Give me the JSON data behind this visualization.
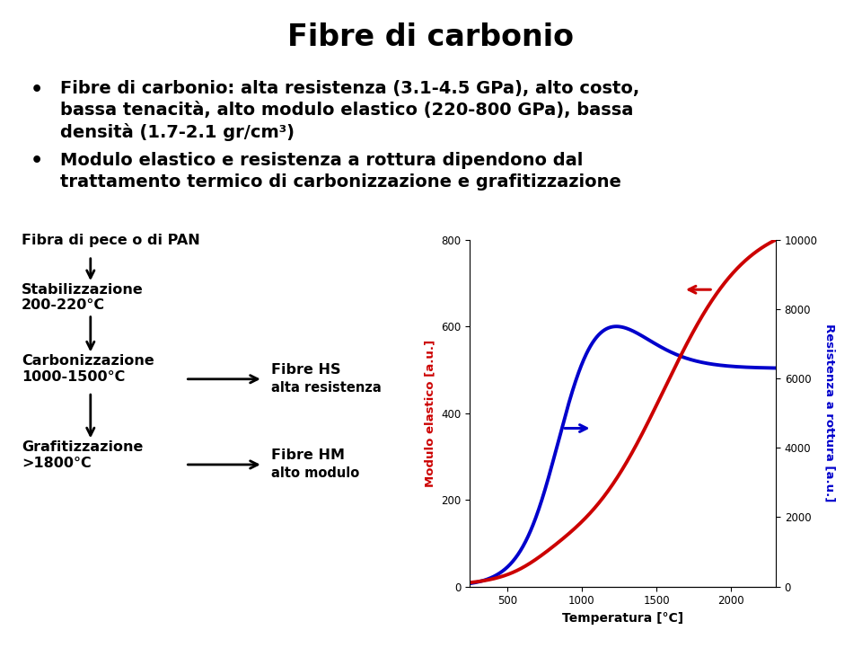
{
  "title": "Fibre di carbonio",
  "bullet1_line1": "Fibre di carbonio: alta resistenza (3.1-4.5 GPa), alto costo,",
  "bullet1_line2": "bassa tenacità, alto modulo elastico (220-800 GPa), bassa",
  "bullet1_line3": "densità (1.7-2.1 gr/cm³)",
  "bullet2_line1": "Modulo elastico e resistenza a rottura dipendono dal",
  "bullet2_line2": "trattamento termico di carbonizzazione e grafitizzazione",
  "flow_label0": "Fibra di pece o di PAN",
  "flow_label1": "Stabilizzazione\n200-220°C",
  "flow_label2": "Carbonizzazione\n1000-1500°C",
  "flow_label3": "Grafitizzazione\n>1800°C",
  "side_label1_line1": "Fibre HS",
  "side_label1_line2": "alta resistenza",
  "side_label2_line1": "Fibre HM",
  "side_label2_line2": "alto modulo",
  "xlabel": "Temperatura [°C]",
  "ylabel_left": "Modulo elastico [a.u.]",
  "ylabel_right": "Resistenza a rottura [a.u.]",
  "xlim": [
    250,
    2300
  ],
  "ylim_left": [
    0,
    800
  ],
  "ylim_right": [
    0,
    10000
  ],
  "xticks": [
    500,
    1000,
    1500,
    2000
  ],
  "yticks_left": [
    0,
    200,
    400,
    600,
    800
  ],
  "yticks_right": [
    0,
    2000,
    4000,
    6000,
    8000,
    10000
  ],
  "blue_color": "#0000cc",
  "red_color": "#cc0000",
  "bg_color": "#ffffff",
  "text_color": "#000000"
}
